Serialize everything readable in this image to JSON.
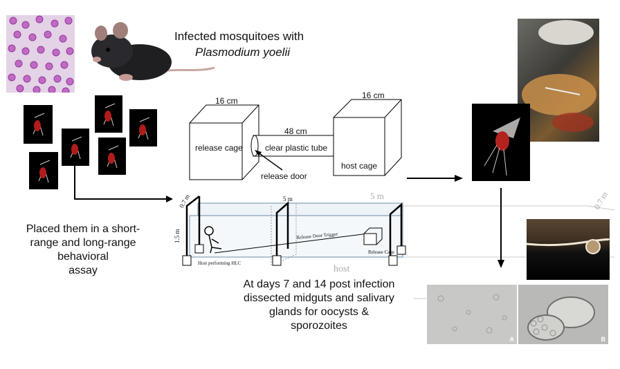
{
  "title": {
    "line1": "Infected mosquitoes with",
    "line2": "Plasmodium yoelii"
  },
  "assay_text": {
    "line1": "Placed them in a short-",
    "line2": "range and long-range",
    "line3": "behavioral",
    "line4": "assay"
  },
  "dissect_text": {
    "line1": "At days 7 and 14 post infection",
    "line2": "dissected midguts and salivary",
    "line3": "glands for oocysts &",
    "line4": "sporozoites"
  },
  "short_range": {
    "left_box_width": "16 cm",
    "right_box_width": "16 cm",
    "tube_length": "48 cm",
    "release_cage": "release cage",
    "tube": "clear plastic tube",
    "host_cage": "host cage",
    "release_door": "release door"
  },
  "long_range": {
    "height_left": "0.7 m",
    "vertical": "1.5 m",
    "mid_length": "5 m",
    "faded_length": "5 m",
    "faded_height": "0.7 m",
    "door_trigger": "Release Door Trigger",
    "release_cage": "Release Cage",
    "host_label": "Host performing HLC",
    "faded_host": "host"
  },
  "panel_letters": {
    "a": "A",
    "b": "B"
  }
}
